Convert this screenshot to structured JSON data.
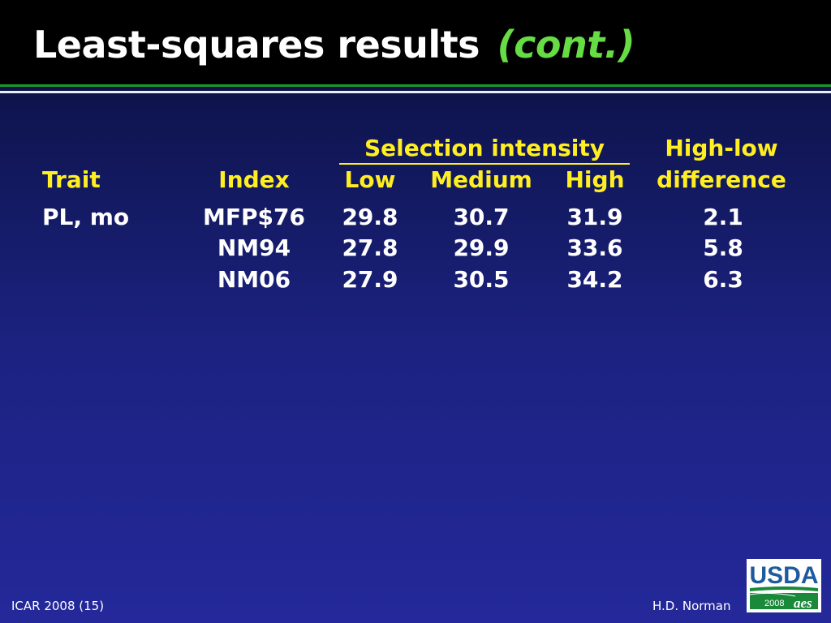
{
  "slide": {
    "title": "Least-squares results",
    "title_suffix": "(cont.)"
  },
  "table": {
    "group_header": "Selection intensity",
    "diff_header_line1": "High-low",
    "diff_header_line2": "difference",
    "col_trait": "Trait",
    "col_index": "Index",
    "col_low": "Low",
    "col_medium": "Medium",
    "col_high": "High",
    "rows": [
      {
        "trait": "PL, mo",
        "index": "MFP$76",
        "low": "29.8",
        "medium": "30.7",
        "high": "31.9",
        "diff": "2.1"
      },
      {
        "trait": "",
        "index": "NM94",
        "low": "27.8",
        "medium": "29.9",
        "high": "33.6",
        "diff": "5.8"
      },
      {
        "trait": "",
        "index": "NM06",
        "low": "27.9",
        "medium": "30.5",
        "high": "34.2",
        "diff": "6.3"
      }
    ]
  },
  "footer": {
    "left": "ICAR 2008 (15)",
    "right": "H.D. Norman"
  },
  "logo": {
    "text": "USDA",
    "year": "2008",
    "mark": "aes"
  },
  "colors": {
    "header_yellow": "#ffee22",
    "title_green": "#66dd44",
    "rule_green": "#1a9a2a"
  }
}
